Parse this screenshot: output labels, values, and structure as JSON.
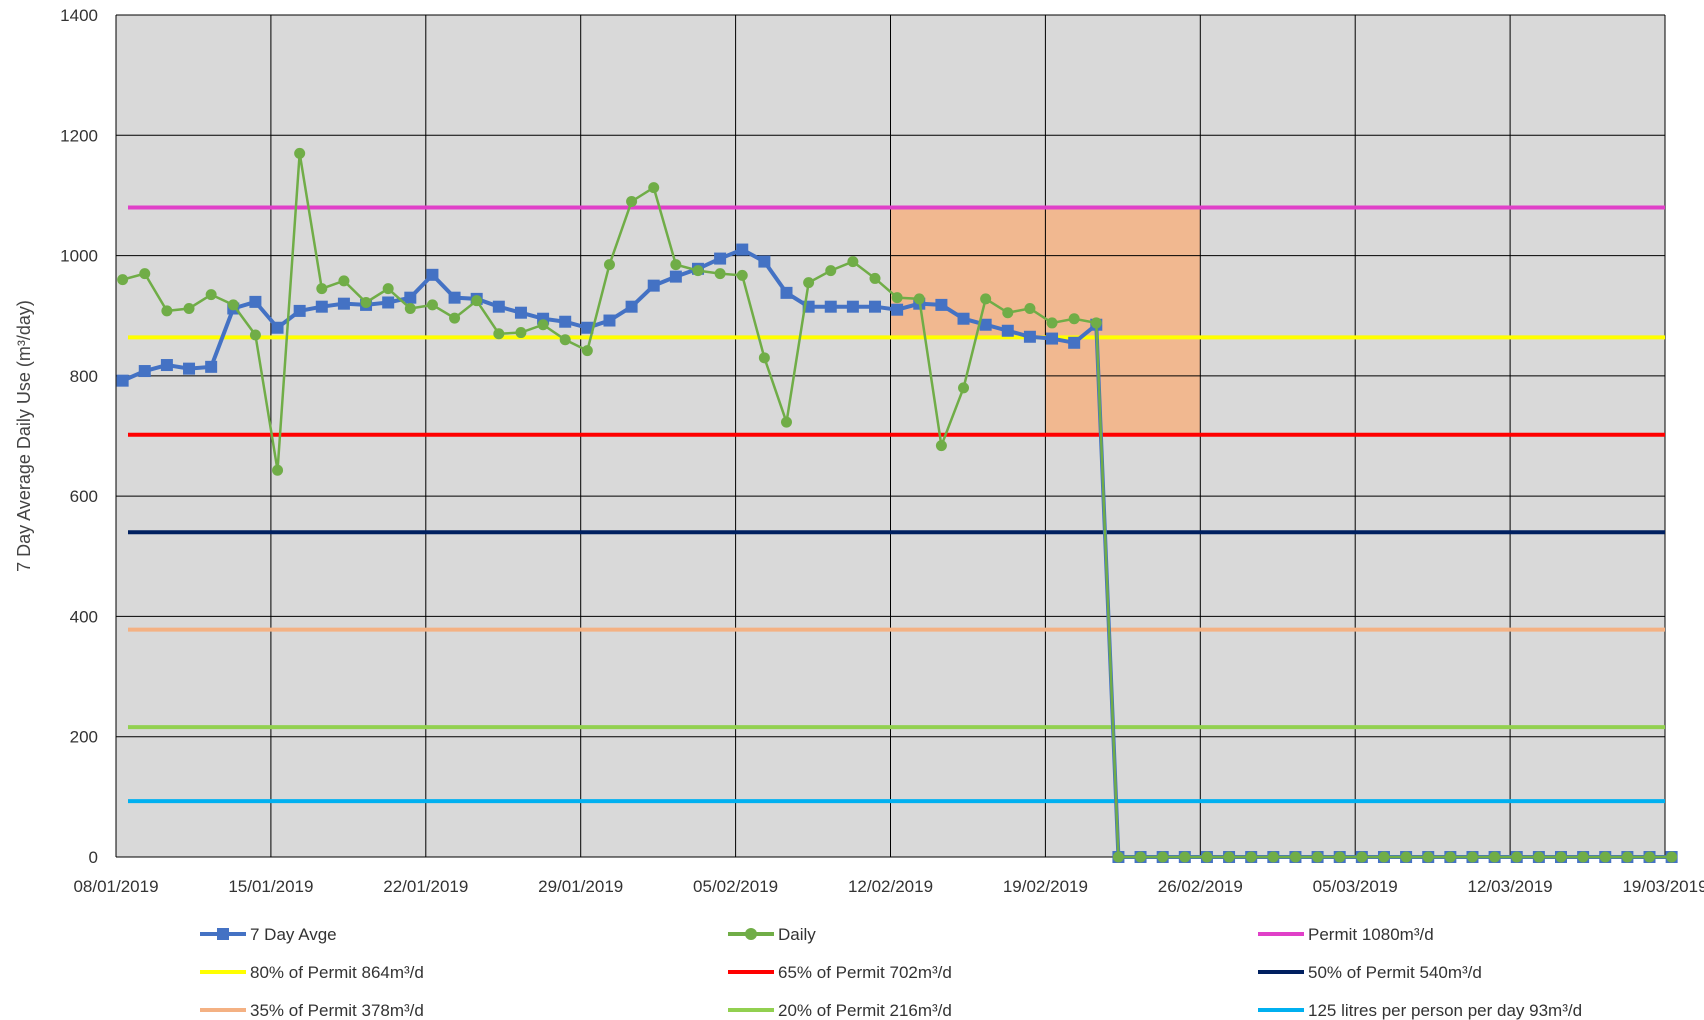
{
  "chart_data": {
    "type": "line",
    "title": "",
    "xlabel": "",
    "ylabel": "7 Day Average Daily Use (m³/day)",
    "ylim": [
      0,
      1400
    ],
    "yticks": [
      0,
      200,
      400,
      600,
      800,
      1000,
      1200,
      1400
    ],
    "xlim": [
      "2019-01-08",
      "2019-03-19"
    ],
    "xticks": [
      "08/01/2019",
      "15/01/2019",
      "22/01/2019",
      "29/01/2019",
      "05/02/2019",
      "12/02/2019",
      "19/02/2019",
      "26/02/2019",
      "05/03/2019",
      "12/03/2019",
      "19/03/2019"
    ],
    "grid": true,
    "legend_position": "bottom",
    "x_start": "2019-01-08",
    "series": [
      {
        "name": "7 Day Avge",
        "color": "#4472c4",
        "marker": "square",
        "values": [
          792,
          808,
          818,
          812,
          815,
          912,
          923,
          880,
          908,
          915,
          920,
          918,
          922,
          930,
          968,
          930,
          928,
          915,
          905,
          895,
          890,
          880,
          892,
          915,
          950,
          965,
          978,
          995,
          1010,
          990,
          938,
          915,
          915,
          915,
          915,
          910,
          920,
          918,
          895,
          885,
          875,
          865,
          862,
          855,
          885,
          0,
          0,
          0,
          0,
          0,
          0,
          0,
          0,
          0,
          0,
          0,
          0,
          0,
          0,
          0,
          0,
          0,
          0,
          0,
          0,
          0,
          0,
          0,
          0,
          0,
          0
        ]
      },
      {
        "name": "Daily",
        "color": "#70ad47",
        "marker": "circle",
        "values": [
          960,
          970,
          908,
          912,
          935,
          918,
          868,
          643,
          1170,
          945,
          958,
          922,
          945,
          912,
          918,
          896,
          925,
          870,
          872,
          885,
          860,
          842,
          985,
          1090,
          1113,
          985,
          975,
          970,
          967,
          830,
          723,
          955,
          975,
          990,
          962,
          930,
          928,
          684,
          780,
          928,
          905,
          912,
          888,
          895,
          888,
          0,
          0,
          0,
          0,
          0,
          0,
          0,
          0,
          0,
          0,
          0,
          0,
          0,
          0,
          0,
          0,
          0,
          0,
          0,
          0,
          0,
          0,
          0,
          0,
          0,
          0
        ]
      }
    ],
    "reference_lines": [
      {
        "name": "Permit 1080m³/d",
        "value": 1080,
        "color": "#e040c8"
      },
      {
        "name": "80% of Permit 864m³/d",
        "value": 864,
        "color": "#ffff00"
      },
      {
        "name": "65% of Permit 702m³/d",
        "value": 702,
        "color": "#ff0000"
      },
      {
        "name": "50% of Permit 540m³/d",
        "value": 540,
        "color": "#002060"
      },
      {
        "name": "35% of Permit 378m³/d",
        "value": 378,
        "color": "#f4b183"
      },
      {
        "name": "20% of Permit 216m³/d",
        "value": 216,
        "color": "#92d050"
      },
      {
        "name": "125 litres per person per day 93m³/d",
        "value": 93,
        "color": "#00b0f0"
      }
    ],
    "highlight_boxes": [
      {
        "x_from": "2019-02-12",
        "x_to": "2019-02-26",
        "y_from": 864,
        "y_to": 1080,
        "color": "#f4b183"
      },
      {
        "x_from": "2019-02-19",
        "x_to": "2019-02-26",
        "y_from": 702,
        "y_to": 864,
        "color": "#f4b183"
      }
    ],
    "legend": [
      [
        "7 Day Avge",
        "Daily",
        "Permit 1080m³/d"
      ],
      [
        "80% of Permit 864m³/d",
        "65% of Permit 702m³/d",
        "50% of Permit 540m³/d"
      ],
      [
        "35% of Permit 378m³/d",
        "20% of Permit 216m³/d",
        "125 litres per person per day 93m³/d"
      ]
    ]
  }
}
